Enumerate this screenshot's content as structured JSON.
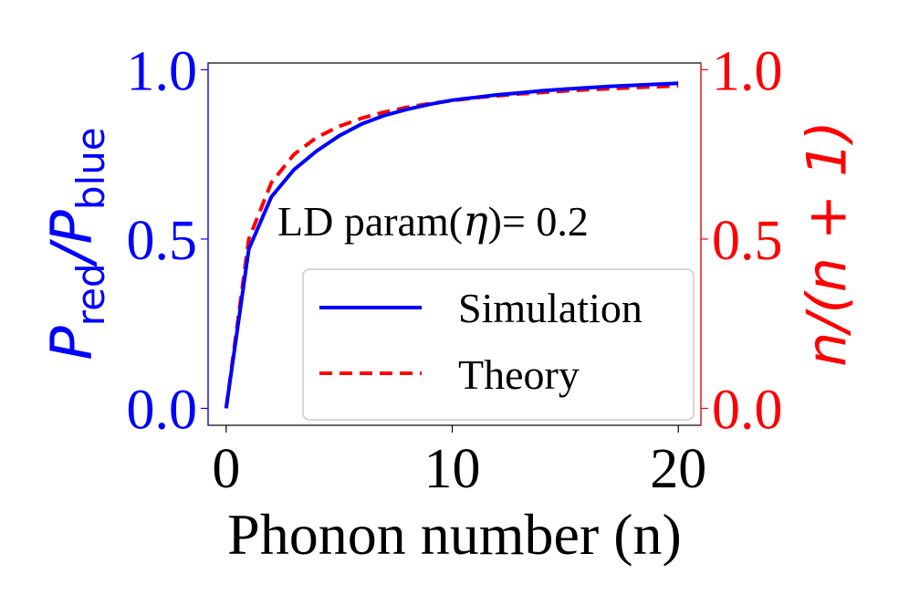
{
  "chart_data": {
    "type": "line",
    "xlabel": "Phonon number (n)",
    "ylabel_left": {
      "base": "P",
      "sub": "red",
      "slash": "/",
      "base2": "P",
      "sub2": "blue"
    },
    "ylabel_right": "n/(n + 1)",
    "annotation": {
      "prefix": "LD param(",
      "symbol": "η",
      "suffix": ")= 0.2"
    },
    "xlim": [
      -0.8,
      21.0
    ],
    "ylim": [
      -0.05,
      1.02
    ],
    "x_ticks": [
      0,
      10,
      20
    ],
    "x_tick_labels": [
      "0",
      "10",
      "20"
    ],
    "y_ticks_left": [
      0.0,
      0.5,
      1.0
    ],
    "y_tick_labels_left": [
      "0.0",
      "0.5",
      "1.0"
    ],
    "y_ticks_right": [
      0.0,
      0.5,
      1.0
    ],
    "y_tick_labels_right": [
      "0.0",
      "0.5",
      "1.0"
    ],
    "legend_position": "lower right",
    "colors": {
      "left_axis": "#0000ff",
      "right_axis": "#ff0000"
    },
    "series": [
      {
        "name": "Simulation",
        "color": "#0000ff",
        "style": "solid",
        "x": [
          0,
          1,
          2,
          3,
          4,
          5,
          6,
          7,
          8,
          9,
          10,
          11,
          12,
          13,
          14,
          15,
          16,
          17,
          18,
          19,
          20
        ],
        "values": [
          0.0,
          0.47,
          0.625,
          0.705,
          0.76,
          0.805,
          0.84,
          0.865,
          0.883,
          0.898,
          0.91,
          0.918,
          0.926,
          0.932,
          0.938,
          0.943,
          0.947,
          0.951,
          0.954,
          0.957,
          0.96
        ]
      },
      {
        "name": "Theory",
        "color": "#ff0000",
        "style": "dashed",
        "x": [
          0,
          1,
          2,
          3,
          4,
          5,
          6,
          7,
          8,
          9,
          10,
          11,
          12,
          13,
          14,
          15,
          16,
          17,
          18,
          19,
          20
        ],
        "values": [
          0.0,
          0.5,
          0.667,
          0.75,
          0.8,
          0.833,
          0.857,
          0.875,
          0.889,
          0.9,
          0.909,
          0.917,
          0.923,
          0.929,
          0.933,
          0.9375,
          0.941,
          0.944,
          0.947,
          0.95,
          0.952
        ]
      }
    ]
  }
}
